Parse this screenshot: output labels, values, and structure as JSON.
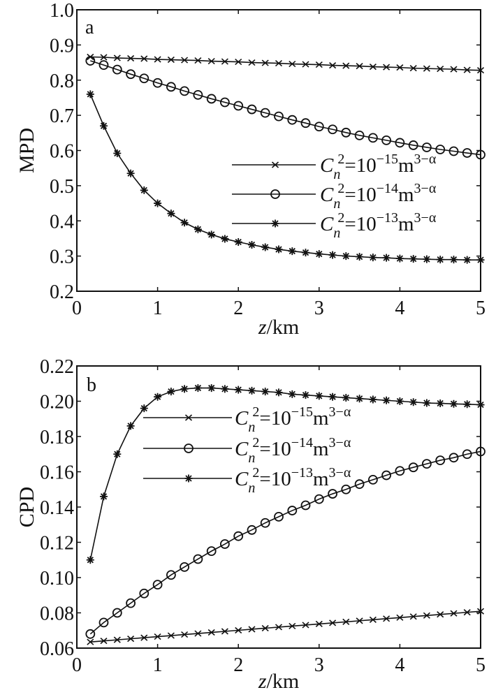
{
  "chart_data": [
    {
      "type": "line",
      "panel_label": "a",
      "xlabel_italic": "z",
      "xlabel_unit": "/km",
      "ylabel": "MPD",
      "xlim": [
        0,
        5
      ],
      "ylim": [
        0.2,
        1.0
      ],
      "xticks": [
        "0",
        "1",
        "2",
        "3",
        "4",
        "5"
      ],
      "yticks": [
        "0.2",
        "0.3",
        "0.4",
        "0.5",
        "0.6",
        "0.7",
        "0.8",
        "0.9",
        "1.0"
      ],
      "legend_position": "center-right",
      "x": [
        0.167,
        0.333,
        0.5,
        0.667,
        0.833,
        1.0,
        1.167,
        1.333,
        1.5,
        1.667,
        1.833,
        2.0,
        2.167,
        2.333,
        2.5,
        2.667,
        2.833,
        3.0,
        3.167,
        3.333,
        3.5,
        3.667,
        3.833,
        4.0,
        4.167,
        4.333,
        4.5,
        4.667,
        4.833,
        5.0
      ],
      "series": [
        {
          "name": "Cn2=10^-15 m^(3-α)",
          "marker": "x",
          "legend": {
            "symbol": "C",
            "sub": "n",
            "sup": "2",
            "eq": "=10",
            "exp": "−15",
            "unit": "m",
            "unit_exp": "3−α"
          },
          "values": [
            0.866,
            0.865,
            0.863,
            0.862,
            0.861,
            0.859,
            0.858,
            0.857,
            0.856,
            0.854,
            0.853,
            0.852,
            0.85,
            0.849,
            0.848,
            0.846,
            0.845,
            0.844,
            0.842,
            0.841,
            0.84,
            0.838,
            0.837,
            0.836,
            0.834,
            0.833,
            0.832,
            0.831,
            0.829,
            0.828
          ]
        },
        {
          "name": "Cn2=10^-14 m^(3-α)",
          "marker": "o",
          "legend": {
            "symbol": "C",
            "sub": "n",
            "sup": "2",
            "eq": "=10",
            "exp": "−14",
            "unit": "m",
            "unit_exp": "3−α"
          },
          "values": [
            0.855,
            0.843,
            0.83,
            0.817,
            0.805,
            0.792,
            0.781,
            0.769,
            0.758,
            0.747,
            0.737,
            0.727,
            0.717,
            0.707,
            0.697,
            0.687,
            0.678,
            0.668,
            0.66,
            0.651,
            0.643,
            0.636,
            0.629,
            0.622,
            0.615,
            0.609,
            0.603,
            0.598,
            0.593,
            0.588
          ]
        },
        {
          "name": "Cn2=10^-13 m^(3-α)",
          "marker": "*",
          "legend": {
            "symbol": "C",
            "sub": "n",
            "sup": "2",
            "eq": "=10",
            "exp": "−13",
            "unit": "m",
            "unit_exp": "3−α"
          },
          "values": [
            0.76,
            0.67,
            0.592,
            0.535,
            0.487,
            0.45,
            0.421,
            0.395,
            0.376,
            0.361,
            0.349,
            0.34,
            0.332,
            0.325,
            0.319,
            0.314,
            0.31,
            0.306,
            0.303,
            0.3,
            0.298,
            0.296,
            0.295,
            0.293,
            0.292,
            0.291,
            0.29,
            0.29,
            0.289,
            0.289
          ]
        }
      ]
    },
    {
      "type": "line",
      "panel_label": "b",
      "xlabel_italic": "z",
      "xlabel_unit": "/km",
      "ylabel": "CPD",
      "xlim": [
        0,
        5
      ],
      "ylim": [
        0.06,
        0.22
      ],
      "xticks": [
        "0",
        "1",
        "2",
        "3",
        "4",
        "5"
      ],
      "yticks": [
        "0.06",
        "0.08",
        "0.10",
        "0.12",
        "0.14",
        "0.16",
        "0.18",
        "0.20",
        "0.22"
      ],
      "legend_position": "top-center",
      "x": [
        0.167,
        0.333,
        0.5,
        0.667,
        0.833,
        1.0,
        1.167,
        1.333,
        1.5,
        1.667,
        1.833,
        2.0,
        2.167,
        2.333,
        2.5,
        2.667,
        2.833,
        3.0,
        3.167,
        3.333,
        3.5,
        3.667,
        3.833,
        4.0,
        4.167,
        4.333,
        4.5,
        4.667,
        4.833,
        5.0
      ],
      "series": [
        {
          "name": "Cn2=10^-15 m^(3-α)",
          "marker": "x",
          "legend": {
            "symbol": "C",
            "sub": "n",
            "sup": "2",
            "eq": "=10",
            "exp": "−15",
            "unit": "m",
            "unit_exp": "3−α"
          },
          "values": [
            0.0635,
            0.0641,
            0.0647,
            0.0653,
            0.0659,
            0.0665,
            0.0671,
            0.0677,
            0.0683,
            0.0689,
            0.0695,
            0.0701,
            0.0707,
            0.0713,
            0.0719,
            0.0725,
            0.0731,
            0.0737,
            0.0743,
            0.0749,
            0.0755,
            0.0761,
            0.0767,
            0.0773,
            0.0779,
            0.0785,
            0.0791,
            0.0797,
            0.0803,
            0.0809
          ]
        },
        {
          "name": "Cn2=10^-14 m^(3-α)",
          "marker": "o",
          "legend": {
            "symbol": "C",
            "sub": "n",
            "sup": "2",
            "eq": "=10",
            "exp": "−14",
            "unit": "m",
            "unit_exp": "3−α"
          },
          "values": [
            0.068,
            0.0745,
            0.08,
            0.0855,
            0.091,
            0.096,
            0.1015,
            0.106,
            0.1105,
            0.115,
            0.119,
            0.1235,
            0.127,
            0.131,
            0.1345,
            0.138,
            0.141,
            0.1445,
            0.1475,
            0.15,
            0.153,
            0.1555,
            0.158,
            0.1605,
            0.1625,
            0.1645,
            0.1665,
            0.168,
            0.17,
            0.1715
          ]
        },
        {
          "name": "Cn2=10^-13 m^(3-α)",
          "marker": "*",
          "legend": {
            "symbol": "C",
            "sub": "n",
            "sup": "2",
            "eq": "=10",
            "exp": "−13",
            "unit": "m",
            "unit_exp": "3−α"
          },
          "values": [
            0.11,
            0.146,
            0.17,
            0.186,
            0.196,
            0.2025,
            0.2055,
            0.207,
            0.2075,
            0.2075,
            0.207,
            0.2065,
            0.206,
            0.2055,
            0.205,
            0.204,
            0.2035,
            0.203,
            0.2025,
            0.202,
            0.2015,
            0.201,
            0.2005,
            0.2,
            0.1995,
            0.199,
            0.1988,
            0.1985,
            0.1983,
            0.198
          ]
        }
      ]
    }
  ]
}
